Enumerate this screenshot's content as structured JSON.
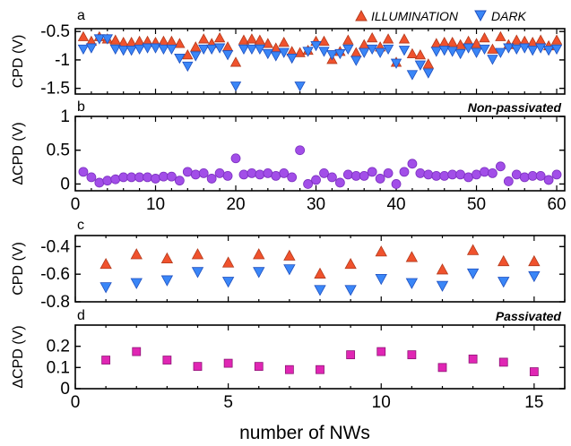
{
  "colors": {
    "illumination": "#f0522d",
    "illumination_edge": "#b23a1c",
    "dark": "#3a86f7",
    "dark_edge": "#1f4fbf",
    "delta_top": "#a24ee8",
    "delta_top_edge": "#7b2fc0",
    "delta_bottom": "#e026b4",
    "delta_bottom_edge": "#8e1575"
  },
  "legend": [
    {
      "label": "ILLUMINATION",
      "series": "illumination",
      "marker": "triangle-up"
    },
    {
      "label": "DARK",
      "series": "dark",
      "marker": "triangle-down"
    }
  ],
  "shared_xlabel": "number of NWs",
  "chart_data": [
    {
      "panel": "a",
      "type": "scatter",
      "xlabel": "",
      "ylabel": "CPD (V)",
      "xlim": [
        0,
        61
      ],
      "ylim": [
        -1.6,
        -0.45
      ],
      "yticks": [
        -0.5,
        -1,
        -1.5
      ],
      "ytick_labels": [
        "-0.5",
        "-1",
        "-1.5"
      ],
      "xticks": [
        0,
        10,
        20,
        30,
        40,
        50,
        60
      ],
      "xtick_labels": [],
      "x": [
        1,
        2,
        3,
        4,
        5,
        6,
        7,
        8,
        9,
        10,
        11,
        12,
        13,
        14,
        15,
        16,
        17,
        18,
        19,
        20,
        21,
        22,
        23,
        24,
        25,
        26,
        27,
        28,
        29,
        30,
        31,
        32,
        33,
        34,
        35,
        36,
        37,
        38,
        39,
        40,
        41,
        42,
        43,
        44,
        45,
        46,
        47,
        48,
        49,
        50,
        51,
        52,
        53,
        54,
        55,
        56,
        57,
        58,
        59,
        60
      ],
      "series": [
        {
          "name": "ILLUMINATION",
          "key": "illumination",
          "marker": "triangle-up",
          "values": [
            -0.6,
            -0.68,
            -0.6,
            -0.64,
            -0.66,
            -0.7,
            -0.7,
            -0.68,
            -0.68,
            -0.7,
            -0.68,
            -0.68,
            -0.72,
            -0.92,
            -0.78,
            -0.64,
            -0.72,
            -0.62,
            -0.78,
            -1.05,
            -0.66,
            -0.64,
            -0.66,
            -0.72,
            -0.8,
            -0.7,
            -0.86,
            -0.88,
            -0.84,
            -0.68,
            -0.68,
            -1.0,
            -0.86,
            -0.66,
            -0.88,
            -0.74,
            -0.62,
            -0.78,
            -0.64,
            -1.05,
            -0.64,
            -0.9,
            -0.92,
            -1.08,
            -0.72,
            -0.7,
            -0.7,
            -0.74,
            -0.68,
            -0.72,
            -0.62,
            -0.82,
            -0.6,
            -0.74,
            -0.66,
            -0.68,
            -0.7,
            -0.66,
            -0.76,
            -0.66
          ]
        },
        {
          "name": "DARK",
          "key": "dark",
          "marker": "triangle-down",
          "values": [
            -0.8,
            -0.78,
            -0.62,
            -0.62,
            -0.8,
            -0.82,
            -0.82,
            -0.8,
            -0.78,
            -0.78,
            -0.8,
            -0.8,
            -0.96,
            -1.1,
            -0.92,
            -0.8,
            -0.8,
            -0.78,
            -0.9,
            -1.45,
            -0.8,
            -0.8,
            -0.8,
            -0.88,
            -0.92,
            -0.86,
            -0.96,
            -1.45,
            -0.84,
            -0.74,
            -0.84,
            -0.9,
            -0.88,
            -0.8,
            -1.0,
            -0.86,
            -0.8,
            -0.86,
            -0.8,
            -1.05,
            -0.82,
            -1.25,
            -1.08,
            -1.22,
            -0.84,
            -0.82,
            -0.84,
            -0.88,
            -0.78,
            -0.86,
            -0.8,
            -0.98,
            -0.86,
            -0.78,
            -0.8,
            -0.78,
            -0.82,
            -0.78,
            -0.82,
            -0.8
          ]
        }
      ]
    },
    {
      "panel": "b",
      "note": "Non-passivated",
      "type": "scatter",
      "xlabel": "",
      "ylabel": "ΔCPD (V)",
      "xlim": [
        0,
        61
      ],
      "ylim": [
        -0.1,
        1.0
      ],
      "yticks": [
        0,
        0.5,
        1
      ],
      "ytick_labels": [
        "0",
        "0.5",
        "1"
      ],
      "xticks": [
        0,
        10,
        20,
        30,
        40,
        50,
        60
      ],
      "xtick_labels": [
        "0",
        "10",
        "20",
        "30",
        "40",
        "50",
        "60"
      ],
      "x": [
        1,
        2,
        3,
        4,
        5,
        6,
        7,
        8,
        9,
        10,
        11,
        12,
        13,
        14,
        15,
        16,
        17,
        18,
        19,
        20,
        21,
        22,
        23,
        24,
        25,
        26,
        27,
        28,
        29,
        30,
        31,
        32,
        33,
        34,
        35,
        36,
        37,
        38,
        39,
        40,
        41,
        42,
        43,
        44,
        45,
        46,
        47,
        48,
        49,
        50,
        51,
        52,
        53,
        54,
        55,
        56,
        57,
        58,
        59,
        60
      ],
      "series": [
        {
          "key": "delta_top",
          "marker": "circle",
          "values": [
            0.18,
            0.1,
            0.02,
            0.05,
            0.07,
            0.1,
            0.1,
            0.1,
            0.1,
            0.08,
            0.11,
            0.11,
            0.05,
            0.18,
            0.14,
            0.16,
            0.08,
            0.16,
            0.12,
            0.38,
            0.14,
            0.16,
            0.14,
            0.16,
            0.12,
            0.16,
            0.1,
            0.5,
            0.0,
            0.06,
            0.16,
            0.1,
            0.02,
            0.14,
            0.12,
            0.12,
            0.18,
            0.08,
            0.16,
            0.0,
            0.18,
            0.3,
            0.16,
            0.14,
            0.12,
            0.12,
            0.14,
            0.14,
            0.1,
            0.14,
            0.18,
            0.16,
            0.26,
            0.04,
            0.14,
            0.1,
            0.12,
            0.12,
            0.06,
            0.14
          ]
        }
      ]
    },
    {
      "panel": "c",
      "type": "scatter",
      "xlabel": "",
      "ylabel": "CPD (V)",
      "xlim": [
        0,
        16
      ],
      "ylim": [
        -0.8,
        -0.32
      ],
      "yticks": [
        -0.4,
        -0.6,
        -0.8
      ],
      "ytick_labels": [
        "-0.4",
        "-0.6",
        "-0.8"
      ],
      "xticks": [
        0,
        5,
        10,
        15
      ],
      "xtick_labels": [],
      "x": [
        1,
        2,
        3,
        4,
        5,
        6,
        7,
        8,
        9,
        10,
        11,
        12,
        13,
        14,
        15
      ],
      "series": [
        {
          "name": "ILLUMINATION",
          "key": "illumination",
          "marker": "triangle-up",
          "values": [
            -0.53,
            -0.46,
            -0.49,
            -0.46,
            -0.52,
            -0.46,
            -0.47,
            -0.6,
            -0.53,
            -0.44,
            -0.48,
            -0.57,
            -0.43,
            -0.51,
            -0.51
          ]
        },
        {
          "name": "DARK",
          "key": "dark",
          "marker": "triangle-down",
          "values": [
            -0.69,
            -0.66,
            -0.64,
            -0.58,
            -0.65,
            -0.58,
            -0.56,
            -0.71,
            -0.71,
            -0.63,
            -0.66,
            -0.68,
            -0.59,
            -0.65,
            -0.61
          ]
        }
      ]
    },
    {
      "panel": "d",
      "note": "Passivated",
      "type": "scatter",
      "xlabel": "number of NWs",
      "ylabel": "ΔCPD (V)",
      "xlim": [
        0,
        16
      ],
      "ylim": [
        0,
        0.3
      ],
      "yticks": [
        0,
        0.1,
        0.2
      ],
      "ytick_labels": [
        "0",
        "0.1",
        "0.2"
      ],
      "xticks": [
        0,
        5,
        10,
        15
      ],
      "xtick_labels": [
        "0",
        "5",
        "10",
        "15"
      ],
      "x": [
        1,
        2,
        3,
        4,
        5,
        6,
        7,
        8,
        9,
        10,
        11,
        12,
        13,
        14,
        15
      ],
      "series": [
        {
          "key": "delta_bottom",
          "marker": "square",
          "values": [
            0.135,
            0.175,
            0.135,
            0.105,
            0.12,
            0.105,
            0.09,
            0.09,
            0.16,
            0.175,
            0.16,
            0.1,
            0.14,
            0.125,
            0.08
          ]
        }
      ]
    }
  ]
}
